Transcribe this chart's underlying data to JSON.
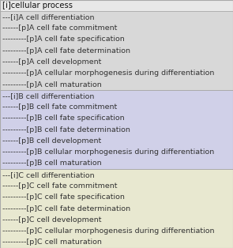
{
  "title_row": "[i]cellular process",
  "title_bg": "#e8e8e8",
  "sections": [
    {
      "bg_color": "#d8d8d8",
      "rows": [
        "---[i]A cell differentiation",
        "------[p]A cell fate commitment",
        "---------[p]A cell fate specification",
        "---------[p]A cell fate determination",
        "------[p]A cell development",
        "---------[p]A cellular morphogenesis during differentiation",
        "---------[p]A cell maturation"
      ]
    },
    {
      "bg_color": "#d0d0e8",
      "rows": [
        "---[i]B cell differentiation",
        "------[p]B cell fate commitment",
        "---------[p]B cell fate specification",
        "---------[p]B cell fate determination",
        "------[p]B cell development",
        "---------[p]B cellular morphogenesis during differentiation",
        "---------[p]B cell maturation"
      ]
    },
    {
      "bg_color": "#e8e8d0",
      "rows": [
        "---[i]C cell differentiation",
        "------[p]C cell fate commitment",
        "---------[p]C cell fate specification",
        "---------[p]C cell fate determination",
        "------[p]C cell development",
        "---------[p]C cellular morphogenesis during differentiation",
        "---------[p]C cell maturation"
      ]
    }
  ],
  "font_size": 6.8,
  "title_font_size": 7.2,
  "border_color": "#aaaaaa",
  "text_color": "#333333",
  "title_color": "#111111",
  "fig_width": 2.95,
  "fig_height": 3.14,
  "dpi": 100
}
